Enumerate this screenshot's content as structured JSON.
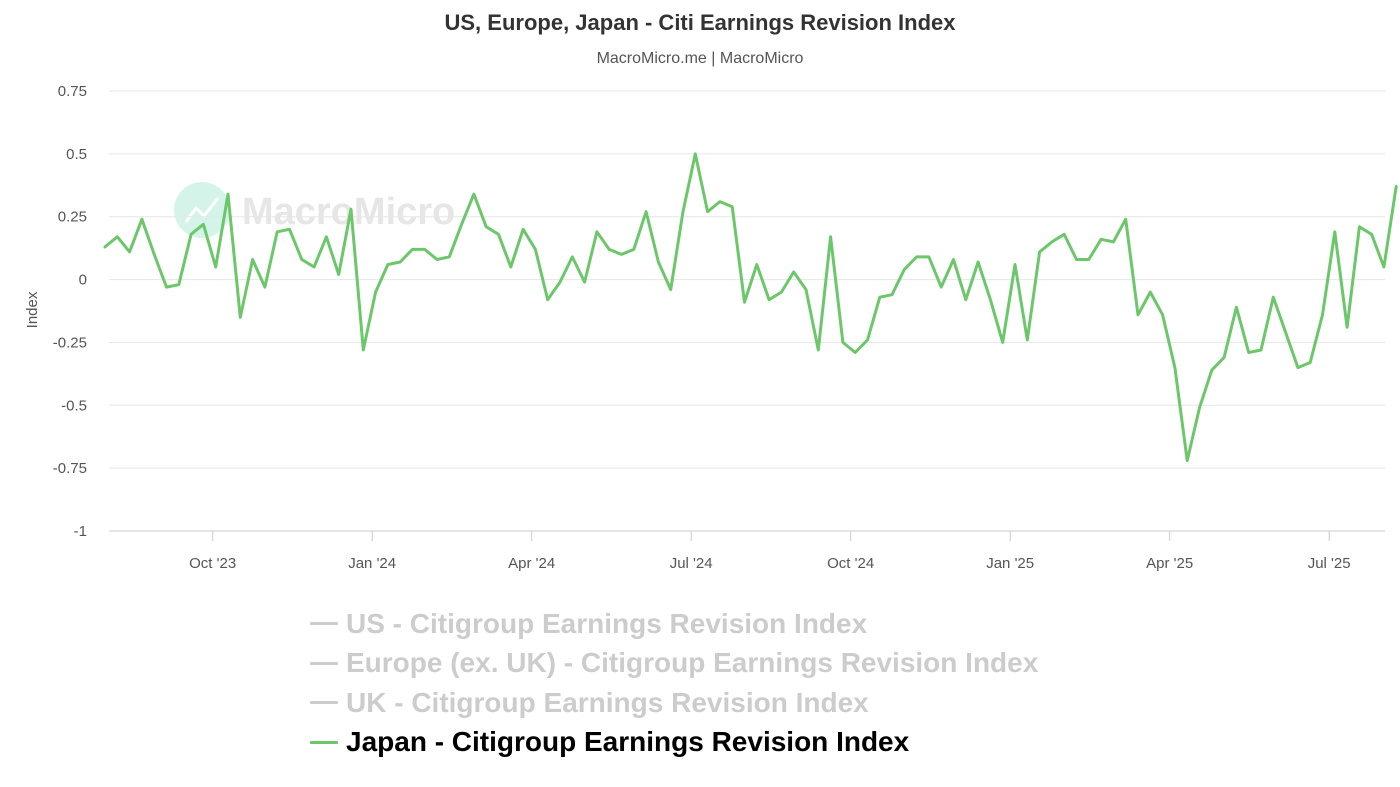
{
  "chart_data": {
    "type": "line",
    "title": "US, Europe, Japan - Citi Earnings Revision Index",
    "subtitle": "MacroMicro.me | MacroMicro",
    "watermark": "MacroMicro",
    "ylabel": "Index",
    "ylim": [
      -1,
      0.75
    ],
    "yticks": [
      {
        "value": 0.75,
        "label": "0.75"
      },
      {
        "value": 0.5,
        "label": "0.5"
      },
      {
        "value": 0.25,
        "label": "0.25"
      },
      {
        "value": 0,
        "label": "0"
      },
      {
        "value": -0.25,
        "label": "-0.25"
      },
      {
        "value": -0.5,
        "label": "-0.5"
      },
      {
        "value": -0.75,
        "label": "-0.75"
      },
      {
        "value": -1,
        "label": "-1"
      }
    ],
    "xdomain": [
      -13,
      147
    ],
    "xticks": [
      {
        "week": 0,
        "label": "Oct '23"
      },
      {
        "week": 20,
        "label": "Jan '24"
      },
      {
        "week": 40,
        "label": "Apr '24"
      },
      {
        "week": 60,
        "label": "Jul '24"
      },
      {
        "week": 80,
        "label": "Oct '24"
      },
      {
        "week": 100,
        "label": "Jan '25"
      },
      {
        "week": 120,
        "label": "Apr '25"
      },
      {
        "week": 140,
        "label": "Jul '25"
      }
    ],
    "series": [
      {
        "name": "US - Citigroup Earnings Revision Index",
        "visible": false,
        "color": "#cccccc",
        "values": []
      },
      {
        "name": "Europe (ex. UK) - Citigroup Earnings Revision Index",
        "visible": false,
        "color": "#cccccc",
        "values": []
      },
      {
        "name": "UK - Citigroup Earnings Revision Index",
        "visible": false,
        "color": "#cccccc",
        "values": []
      },
      {
        "name": "Japan - Citigroup Earnings Revision Index",
        "visible": true,
        "color": "#6cc76a",
        "start_week": -13.5,
        "step_weeks": 1.542,
        "values": [
          0.13,
          0.17,
          0.11,
          0.24,
          0.1,
          -0.03,
          -0.02,
          0.18,
          0.22,
          0.05,
          0.34,
          -0.15,
          0.08,
          -0.03,
          0.19,
          0.2,
          0.08,
          0.05,
          0.17,
          0.02,
          0.28,
          -0.28,
          -0.05,
          0.06,
          0.07,
          0.12,
          0.12,
          0.08,
          0.09,
          0.22,
          0.34,
          0.21,
          0.18,
          0.05,
          0.2,
          0.12,
          -0.08,
          -0.01,
          0.09,
          -0.01,
          0.19,
          0.12,
          0.1,
          0.12,
          0.27,
          0.07,
          -0.04,
          0.27,
          0.5,
          0.27,
          0.31,
          0.29,
          -0.09,
          0.06,
          -0.08,
          -0.05,
          0.03,
          -0.04,
          -0.28,
          0.17,
          -0.25,
          -0.29,
          -0.24,
          -0.07,
          -0.06,
          0.04,
          0.09,
          0.09,
          -0.03,
          0.08,
          -0.08,
          0.07,
          -0.08,
          -0.25,
          0.06,
          -0.24,
          0.11,
          0.15,
          0.18,
          0.08,
          0.08,
          0.16,
          0.15,
          0.24,
          -0.14,
          -0.05,
          -0.14,
          -0.35,
          -0.72,
          -0.51,
          -0.36,
          -0.31,
          -0.11,
          -0.29,
          -0.28,
          -0.07,
          -0.21,
          -0.35,
          -0.33,
          -0.14,
          0.19,
          -0.19,
          0.21,
          0.18,
          0.05,
          0.37
        ]
      }
    ]
  }
}
